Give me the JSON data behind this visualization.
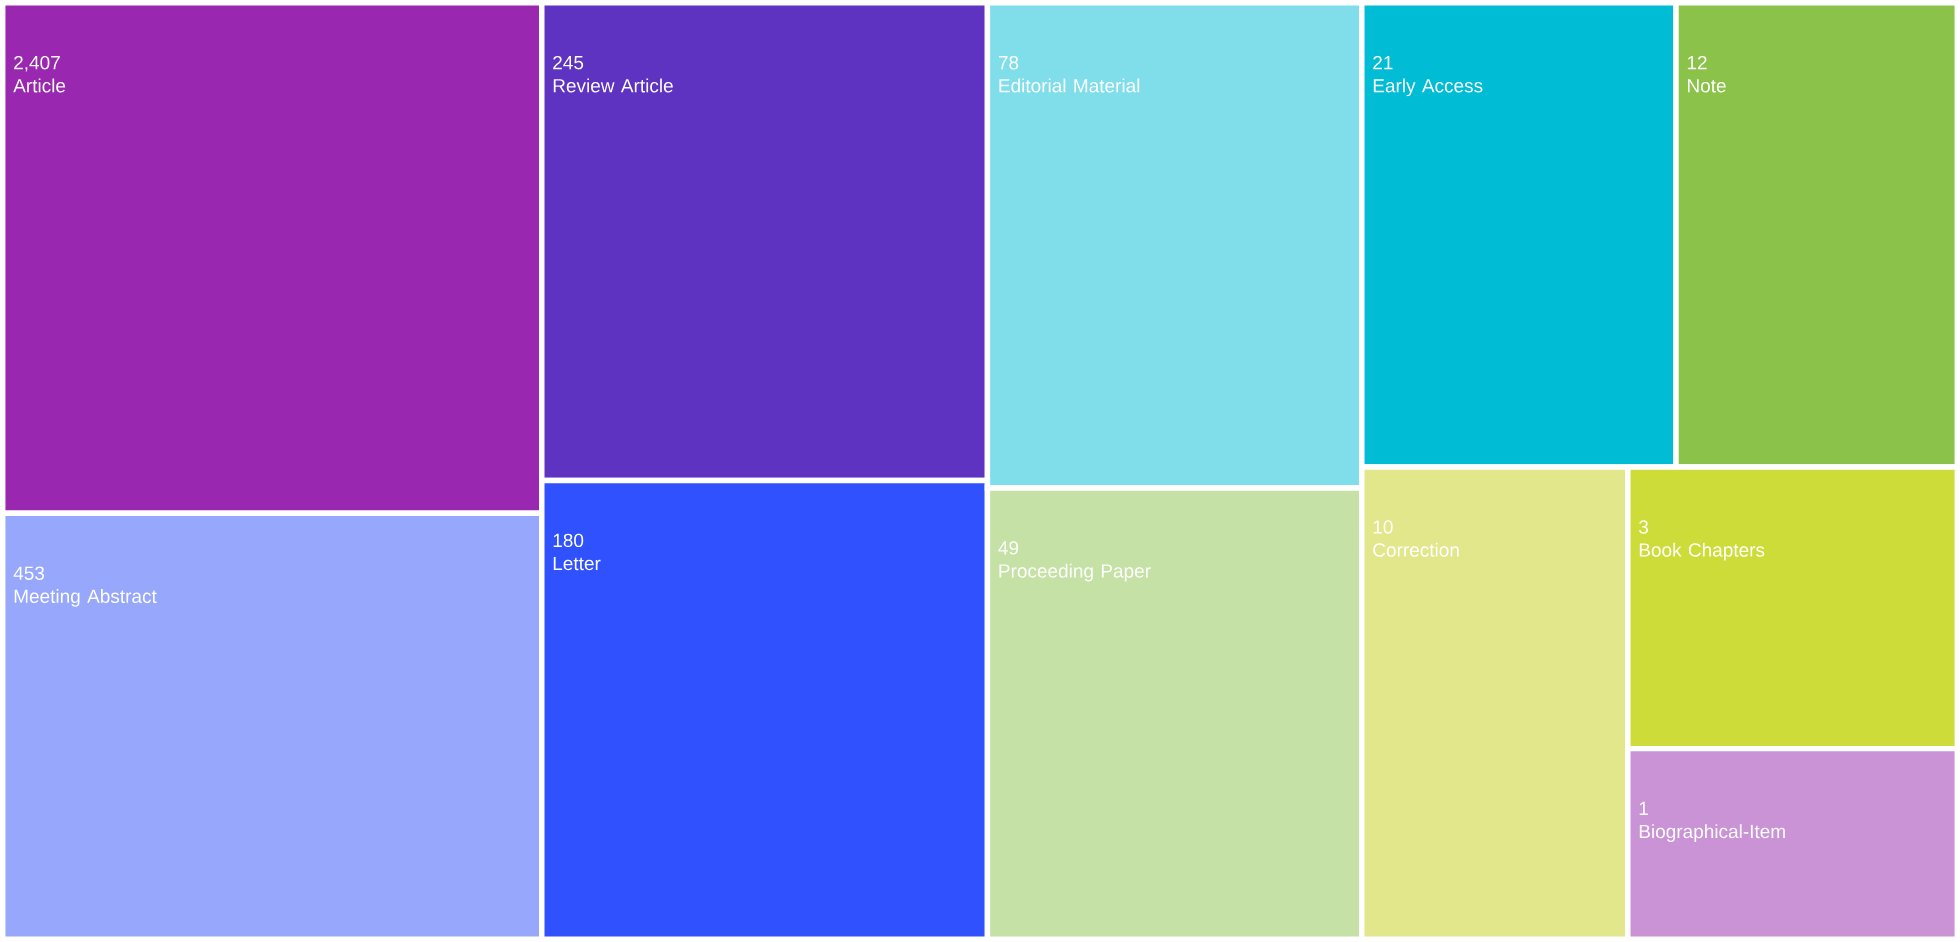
{
  "chart_data": {
    "type": "other",
    "categories": [
      "Article",
      "Meeting Abstract",
      "Review Article",
      "Letter",
      "Editorial Material",
      "Proceeding Paper",
      "Early Access",
      "Note",
      "Correction",
      "Book Chapters",
      "Biographical-Item"
    ],
    "values": [
      2407,
      453,
      245,
      180,
      78,
      49,
      21,
      12,
      10,
      3,
      1
    ],
    "value_labels": [
      "2,407",
      "453",
      "245",
      "180",
      "78",
      "49",
      "21",
      "12",
      "10",
      "3",
      "1"
    ],
    "colors": [
      "#9927b0",
      "#97a7fc",
      "#5e33c1",
      "#3051fe",
      "#80deea",
      "#c5e1a5",
      "#00bcd5",
      "#8bc34a",
      "#e1e78a",
      "#cddc39",
      "#ca93d6"
    ]
  }
}
